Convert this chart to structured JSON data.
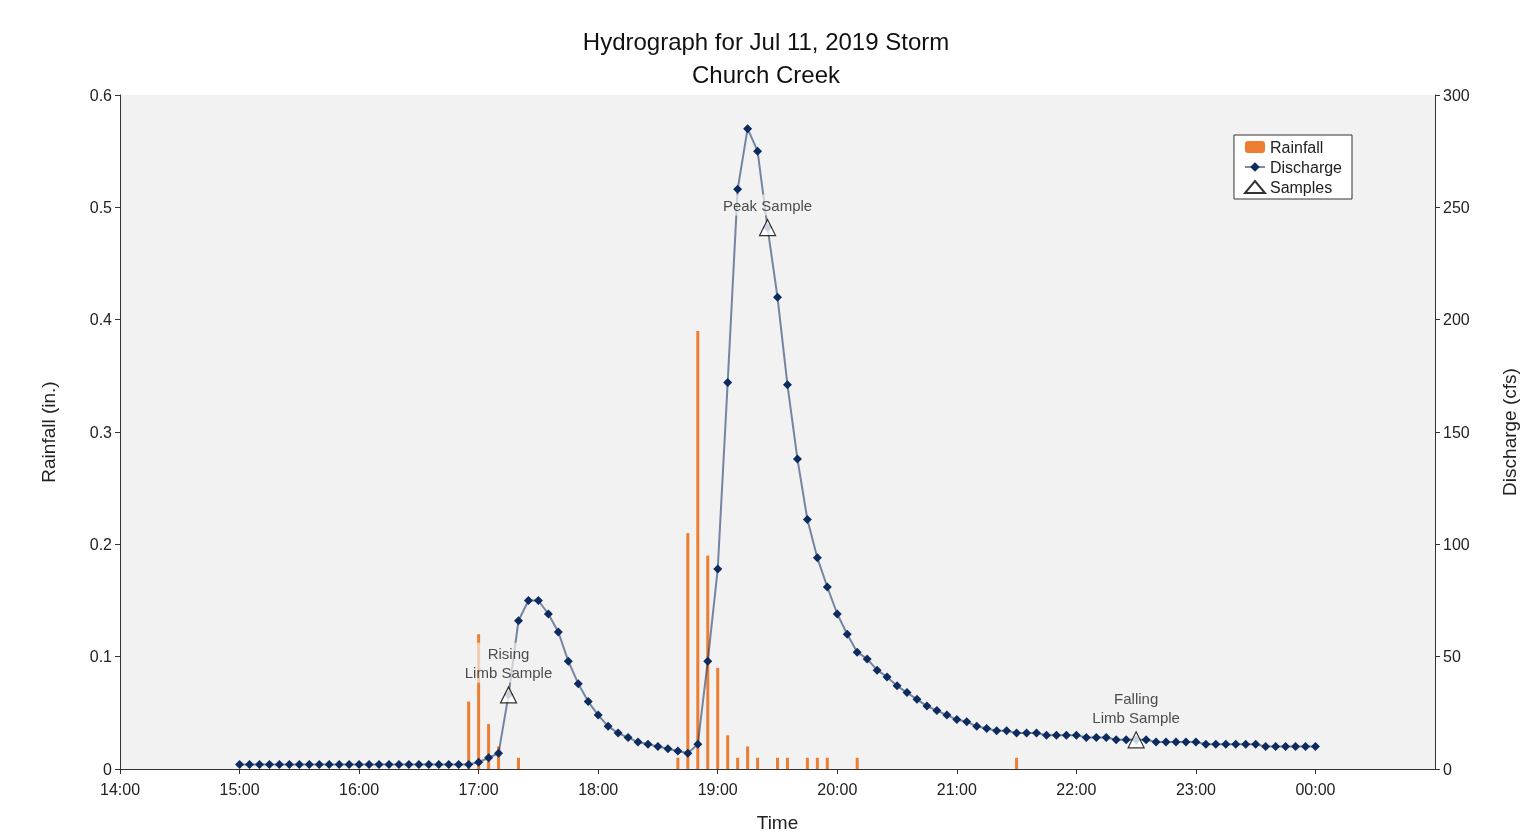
{
  "chart_data": {
    "type": "line",
    "title": "Hydrograph for Jul 11, 2019 Storm",
    "subtitle": "Church Creek",
    "xlabel": "Time",
    "ylabel": "Rainfall (in.)",
    "y2label": "Discharge (cfs)",
    "xlim": [
      "2019-07-11T14:00",
      "2019-07-12T01:00"
    ],
    "xticks": [
      {
        "value": "2019-07-11T14:00",
        "label": "14:00"
      },
      {
        "value": "2019-07-11T15:00",
        "label": "15:00"
      },
      {
        "value": "2019-07-11T16:00",
        "label": "16:00"
      },
      {
        "value": "2019-07-11T17:00",
        "label": "17:00"
      },
      {
        "value": "2019-07-11T18:00",
        "label": "18:00"
      },
      {
        "value": "2019-07-11T19:00",
        "label": "19:00"
      },
      {
        "value": "2019-07-11T20:00",
        "label": "20:00"
      },
      {
        "value": "2019-07-11T21:00",
        "label": "21:00"
      },
      {
        "value": "2019-07-11T22:00",
        "label": "22:00"
      },
      {
        "value": "2019-07-11T23:00",
        "label": "23:00"
      },
      {
        "value": "2019-07-12T00:00",
        "label": "00:00"
      }
    ],
    "ylim": [
      0,
      0.6
    ],
    "yticks": [
      0,
      0.1,
      0.2,
      0.3,
      0.4,
      0.5,
      0.6
    ],
    "y2lim": [
      0,
      300
    ],
    "y2ticks": [
      0,
      50,
      100,
      150,
      200,
      250,
      300
    ],
    "grid": false,
    "legend": "top right",
    "series": [
      {
        "name": "Rainfall",
        "type": "bar",
        "color": "#ed7d31",
        "x": [
          "2019-07-11T16:55",
          "2019-07-11T17:00",
          "2019-07-11T17:05",
          "2019-07-11T17:10",
          "2019-07-11T17:20",
          "2019-07-11T18:40",
          "2019-07-11T18:45",
          "2019-07-11T18:50",
          "2019-07-11T18:55",
          "2019-07-11T19:00",
          "2019-07-11T19:05",
          "2019-07-11T19:10",
          "2019-07-11T19:15",
          "2019-07-11T19:20",
          "2019-07-11T19:30",
          "2019-07-11T19:35",
          "2019-07-11T19:45",
          "2019-07-11T19:50",
          "2019-07-11T19:55",
          "2019-07-11T20:10",
          "2019-07-11T21:30"
        ],
        "values": [
          0.06,
          0.12,
          0.04,
          0.02,
          0.01,
          0.01,
          0.21,
          0.39,
          0.19,
          0.09,
          0.03,
          0.01,
          0.02,
          0.01,
          0.01,
          0.01,
          0.01,
          0.01,
          0.01,
          0.01,
          0.01
        ]
      },
      {
        "name": "Discharge",
        "axis": "y2",
        "color": "#0d2b5e",
        "marker": "diamond",
        "line_style": "solid",
        "x": [
          "2019-07-11T15:00",
          "2019-07-11T15:05",
          "2019-07-11T15:10",
          "2019-07-11T15:15",
          "2019-07-11T15:20",
          "2019-07-11T15:25",
          "2019-07-11T15:30",
          "2019-07-11T15:35",
          "2019-07-11T15:40",
          "2019-07-11T15:45",
          "2019-07-11T15:50",
          "2019-07-11T15:55",
          "2019-07-11T16:00",
          "2019-07-11T16:05",
          "2019-07-11T16:10",
          "2019-07-11T16:15",
          "2019-07-11T16:20",
          "2019-07-11T16:25",
          "2019-07-11T16:30",
          "2019-07-11T16:35",
          "2019-07-11T16:40",
          "2019-07-11T16:45",
          "2019-07-11T16:50",
          "2019-07-11T16:55",
          "2019-07-11T17:00",
          "2019-07-11T17:05",
          "2019-07-11T17:10",
          "2019-07-11T17:15",
          "2019-07-11T17:20",
          "2019-07-11T17:25",
          "2019-07-11T17:30",
          "2019-07-11T17:35",
          "2019-07-11T17:40",
          "2019-07-11T17:45",
          "2019-07-11T17:50",
          "2019-07-11T17:55",
          "2019-07-11T18:00",
          "2019-07-11T18:05",
          "2019-07-11T18:10",
          "2019-07-11T18:15",
          "2019-07-11T18:20",
          "2019-07-11T18:25",
          "2019-07-11T18:30",
          "2019-07-11T18:35",
          "2019-07-11T18:40",
          "2019-07-11T18:45",
          "2019-07-11T18:50",
          "2019-07-11T18:55",
          "2019-07-11T19:00",
          "2019-07-11T19:05",
          "2019-07-11T19:10",
          "2019-07-11T19:15",
          "2019-07-11T19:20",
          "2019-07-11T19:25",
          "2019-07-11T19:30",
          "2019-07-11T19:35",
          "2019-07-11T19:40",
          "2019-07-11T19:45",
          "2019-07-11T19:50",
          "2019-07-11T19:55",
          "2019-07-11T20:00",
          "2019-07-11T20:05",
          "2019-07-11T20:10",
          "2019-07-11T20:15",
          "2019-07-11T20:20",
          "2019-07-11T20:25",
          "2019-07-11T20:30",
          "2019-07-11T20:35",
          "2019-07-11T20:40",
          "2019-07-11T20:45",
          "2019-07-11T20:50",
          "2019-07-11T20:55",
          "2019-07-11T21:00",
          "2019-07-11T21:05",
          "2019-07-11T21:10",
          "2019-07-11T21:15",
          "2019-07-11T21:20",
          "2019-07-11T21:25",
          "2019-07-11T21:30",
          "2019-07-11T21:35",
          "2019-07-11T21:40",
          "2019-07-11T21:45",
          "2019-07-11T21:50",
          "2019-07-11T21:55",
          "2019-07-11T22:00",
          "2019-07-11T22:05",
          "2019-07-11T22:10",
          "2019-07-11T22:15",
          "2019-07-11T22:20",
          "2019-07-11T22:25",
          "2019-07-11T22:30",
          "2019-07-11T22:35",
          "2019-07-11T22:40",
          "2019-07-11T22:45",
          "2019-07-11T22:50",
          "2019-07-11T22:55",
          "2019-07-11T23:00",
          "2019-07-11T23:05",
          "2019-07-11T23:10",
          "2019-07-11T23:15",
          "2019-07-11T23:20",
          "2019-07-11T23:25",
          "2019-07-11T23:30",
          "2019-07-11T23:35",
          "2019-07-11T23:40",
          "2019-07-11T23:45",
          "2019-07-11T23:50",
          "2019-07-11T23:55",
          "2019-07-12T00:00"
        ],
        "values": [
          2,
          2,
          2,
          2,
          2,
          2,
          2,
          2,
          2,
          2,
          2,
          2,
          2,
          2,
          2,
          2,
          2,
          2,
          2,
          2,
          2,
          2,
          2,
          2,
          3,
          5,
          7,
          33,
          66,
          75,
          75,
          69,
          61,
          48,
          38,
          30,
          24,
          19,
          16,
          14,
          12,
          11,
          10,
          9,
          8,
          7,
          11,
          48,
          89,
          172,
          258,
          285,
          275,
          241,
          210,
          171,
          138,
          111,
          94,
          81,
          69,
          60,
          52,
          49,
          44,
          41,
          37,
          34,
          31,
          28,
          26,
          24,
          22,
          21,
          19,
          18,
          17,
          17,
          16,
          16,
          16,
          15,
          15,
          15,
          15,
          14,
          14,
          14,
          13,
          13,
          13,
          13,
          12,
          12,
          12,
          12,
          12,
          11,
          11,
          11,
          11,
          11,
          11,
          10,
          10,
          10,
          10,
          10,
          10
        ]
      },
      {
        "name": "Samples",
        "type": "scatter",
        "axis": "y2",
        "color": "#000000",
        "marker": "triangle",
        "x": [
          "2019-07-11T17:15",
          "2019-07-11T19:25",
          "2019-07-11T22:30"
        ],
        "values": [
          33,
          241,
          13
        ]
      }
    ],
    "annotations": [
      {
        "text": "Rising\nLimb Sample",
        "x": "2019-07-11T17:15",
        "y": 0.066
      },
      {
        "text": "Peak Sample",
        "x": "2019-07-11T19:25",
        "y": 0.482
      },
      {
        "text": "Falling\nLimb Sample",
        "x": "2019-07-11T22:30",
        "y": 0.026
      }
    ]
  }
}
